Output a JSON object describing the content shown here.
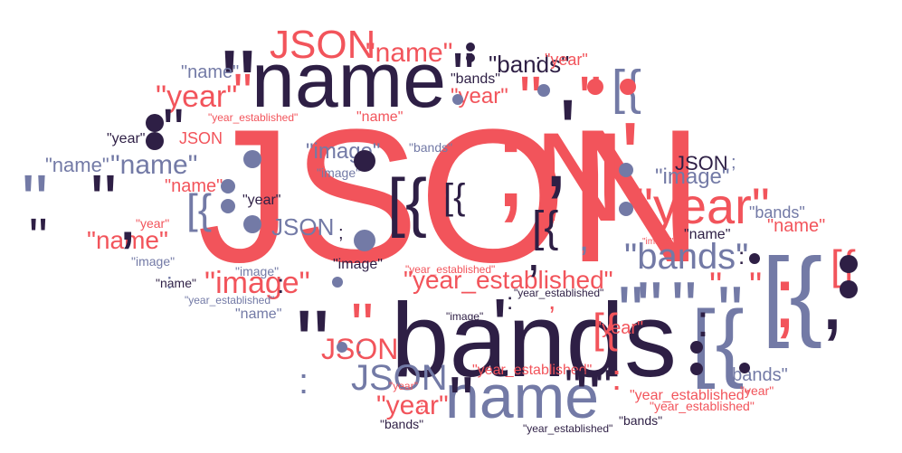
{
  "colors": {
    "red": "#f2545b",
    "navy": "#2e1f45",
    "slate": "#737aa6",
    "white": "#ffffff"
  },
  "words": [
    {
      "text": "JSON",
      "color": "red"
    },
    {
      "text": "bands",
      "color": "navy"
    },
    {
      "text": "name",
      "color": "navy"
    },
    {
      "text": "name",
      "color": "slate"
    },
    {
      "text": ";",
      "color": "red"
    },
    {
      "text": "N",
      "color": "red"
    },
    {
      "text": "'",
      "color": "red"
    },
    {
      "text": ",",
      "color": "navy"
    },
    {
      "text": "'",
      "color": "navy"
    },
    {
      "text": "\"",
      "color": "navy"
    },
    {
      "text": "\"",
      "color": "navy"
    },
    {
      "text": "\"",
      "color": "red"
    },
    {
      "text": "\"",
      "color": "red"
    },
    {
      "text": "\"",
      "color": "navy"
    },
    {
      "text": "\"",
      "color": "slate"
    },
    {
      "text": "\"",
      "color": "slate"
    },
    {
      "text": "[{",
      "color": "navy"
    },
    {
      "text": "[{",
      "color": "slate"
    },
    {
      "text": "[{",
      "color": "slate"
    },
    {
      "text": "[{",
      "color": "slate"
    },
    {
      "text": ";",
      "color": "red"
    },
    {
      "text": ",",
      "color": "navy"
    },
    {
      "text": "\"year\"",
      "color": "red"
    },
    {
      "text": "\"bands\"",
      "color": "slate"
    },
    {
      "text": "\"image\"",
      "color": "red"
    },
    {
      "text": "\"year_established\"",
      "color": "red"
    },
    {
      "text": "JSON",
      "color": "red"
    },
    {
      "text": "\"name\"",
      "color": "red"
    },
    {
      "text": "\"year\"",
      "color": "red"
    },
    {
      "text": "\"name\"",
      "color": "slate"
    },
    {
      "text": "\"image\"",
      "color": "slate"
    },
    {
      "text": "\"bands\"",
      "color": "navy"
    },
    {
      "text": "\"bands\"",
      "color": "navy"
    },
    {
      "text": "JSON",
      "color": "slate"
    },
    {
      "text": "JSON",
      "color": "red"
    },
    {
      "text": "JSON",
      "color": "navy"
    },
    {
      "text": "JSON",
      "color": "slate"
    },
    {
      "text": "JSON",
      "color": "red"
    },
    {
      "text": "\"name\"",
      "color": "red"
    },
    {
      "text": "\"name\"",
      "color": "red"
    },
    {
      "text": "\"year\"",
      "color": "red"
    },
    {
      "text": "\"name\"",
      "color": "red"
    },
    {
      "text": "\"name\"",
      "color": "slate"
    },
    {
      "text": "\"name\"",
      "color": "slate"
    },
    {
      "text": "\"name\"",
      "color": "slate"
    },
    {
      "text": "\"name\"",
      "color": "navy"
    },
    {
      "text": "\"name\"",
      "color": "navy"
    },
    {
      "text": "\"name\"",
      "color": "red"
    },
    {
      "text": "\"year\"",
      "color": "red"
    },
    {
      "text": "\"year\"",
      "color": "red"
    },
    {
      "text": "\"year\"",
      "color": "navy"
    },
    {
      "text": "\"year\"",
      "color": "navy"
    },
    {
      "text": "\"year\"",
      "color": "red"
    },
    {
      "text": "\"year\"",
      "color": "red"
    },
    {
      "text": "\"year\"",
      "color": "red"
    },
    {
      "text": "\"year\"",
      "color": "red"
    },
    {
      "text": "\"bands\"",
      "color": "slate"
    },
    {
      "text": "\"bands\"",
      "color": "slate"
    },
    {
      "text": "\"bands\"",
      "color": "navy"
    },
    {
      "text": "\"bands\"",
      "color": "navy"
    },
    {
      "text": "\"bands\"",
      "color": "slate"
    },
    {
      "text": "\"image\"",
      "color": "slate"
    },
    {
      "text": "\"image\"",
      "color": "slate"
    },
    {
      "text": "\"image\"",
      "color": "slate"
    },
    {
      "text": "\"image\"",
      "color": "slate"
    },
    {
      "text": "\"image\"",
      "color": "navy"
    },
    {
      "text": "\"image\"",
      "color": "navy"
    },
    {
      "text": "\"image\"",
      "color": "red"
    },
    {
      "text": "\"year_established\"",
      "color": "red"
    },
    {
      "text": "\"year_established\"",
      "color": "red"
    },
    {
      "text": "\"year_established\"",
      "color": "red"
    },
    {
      "text": "\"year_established\"",
      "color": "slate"
    },
    {
      "text": "\"year_established\"",
      "color": "red"
    },
    {
      "text": "\"year_established\"",
      "color": "navy"
    },
    {
      "text": "\"year_established\"",
      "color": "navy"
    },
    {
      "text": "\"year_established\"",
      "color": "red"
    },
    {
      "text": "[{",
      "color": "red"
    },
    {
      "text": "[{",
      "color": "red"
    },
    {
      "text": "[{",
      "color": "slate"
    },
    {
      "text": "[{",
      "color": "navy"
    },
    {
      "text": "[{",
      "color": "navy"
    },
    {
      "text": "\"",
      "color": "navy"
    },
    {
      "text": "\"",
      "color": "slate"
    },
    {
      "text": "\"",
      "color": "navy"
    },
    {
      "text": "\"",
      "color": "navy"
    },
    {
      "text": "\"",
      "color": "red"
    },
    {
      "text": "\"",
      "color": "red"
    },
    {
      "text": "\"",
      "color": "navy"
    },
    {
      "text": "\"",
      "color": "navy"
    },
    {
      "text": "\"",
      "color": "slate"
    },
    {
      "text": "\"",
      "color": "slate"
    },
    {
      "text": "\"",
      "color": "red"
    },
    {
      "text": "\"",
      "color": "red"
    },
    {
      "text": "\"",
      "color": "navy"
    },
    {
      "text": "\"",
      "color": "navy"
    },
    {
      "text": ":",
      "color": "navy"
    },
    {
      "text": ":",
      "color": "navy"
    },
    {
      "text": ":",
      "color": "slate"
    },
    {
      "text": ":",
      "color": "red"
    },
    {
      "text": ":",
      "color": "navy"
    },
    {
      "text": ":",
      "color": "navy"
    },
    {
      "text": ":",
      "color": "slate"
    },
    {
      "text": ":",
      "color": "slate"
    },
    {
      "text": ":",
      "color": "red"
    },
    {
      "text": ":",
      "color": "navy"
    },
    {
      "text": ",",
      "color": "navy"
    },
    {
      "text": ",",
      "color": "navy"
    },
    {
      "text": ",",
      "color": "slate"
    },
    {
      "text": ",",
      "color": "red"
    },
    {
      "text": ";",
      "color": "navy"
    },
    {
      "text": ";",
      "color": "slate"
    },
    {
      "text": "'",
      "color": "navy"
    }
  ],
  "dots": [
    "navy",
    "navy",
    "navy",
    "slate",
    "slate",
    "slate",
    "slate",
    "slate",
    "navy",
    "navy",
    "navy",
    "navy",
    "slate",
    "red",
    "red",
    "slate",
    "navy",
    "navy",
    "slate",
    "slate",
    "slate",
    "slate",
    "navy",
    "navy"
  ]
}
